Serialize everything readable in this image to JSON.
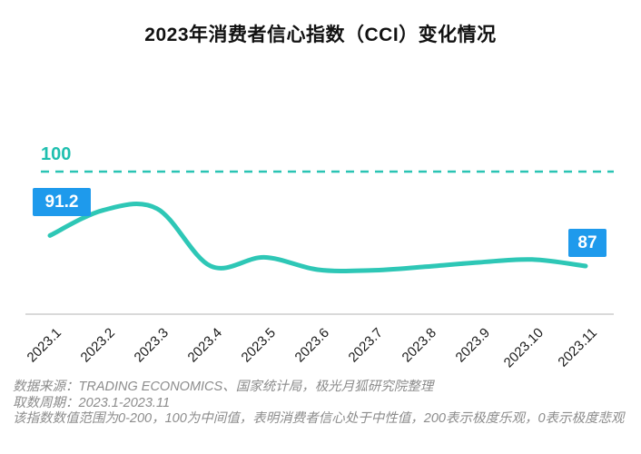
{
  "chart_data": {
    "type": "line",
    "title": "2023年消费者信心指数（CCI）变化情况",
    "categories": [
      "2023.1",
      "2023.2",
      "2023.3",
      "2023.4",
      "2023.5",
      "2023.6",
      "2023.7",
      "2023.8",
      "2023.9",
      "2023.10",
      "2023.11"
    ],
    "series": [
      {
        "name": "CCI",
        "values": [
          91.2,
          94.7,
          94.9,
          87.0,
          88.2,
          86.5,
          86.4,
          86.9,
          87.5,
          87.9,
          87.0
        ]
      }
    ],
    "reference_line": {
      "value": 100,
      "label": "100"
    },
    "value_labels": {
      "first": "91.2",
      "last": "87"
    },
    "value_range": [
      0,
      200
    ],
    "xlabel": "",
    "ylabel": "",
    "grid": false,
    "legend_position": "none"
  },
  "footer": {
    "lines": [
      "数据来源：TRADING ECONOMICS、国家统计局，极光月狐研究院整理",
      "取数周期：2023.1-2023.11",
      "该指数数值范围为0-200，100为中间值，表明消费者信心处于中性值，200表示极度乐观，0表示极度悲观"
    ]
  },
  "colors": {
    "line": "#2EC7B6",
    "reference_line": "#2AC4B4",
    "reference_label_text": "#1FBFAF",
    "value_label_bg": "#1E9AEC",
    "value_label_text": "#FFFFFF",
    "axis_line": "#D9D9D9",
    "tick_text": "#1A1A1A",
    "footer_text": "#8C8C8C",
    "title_text": "#111111",
    "background": "#FFFFFF"
  }
}
